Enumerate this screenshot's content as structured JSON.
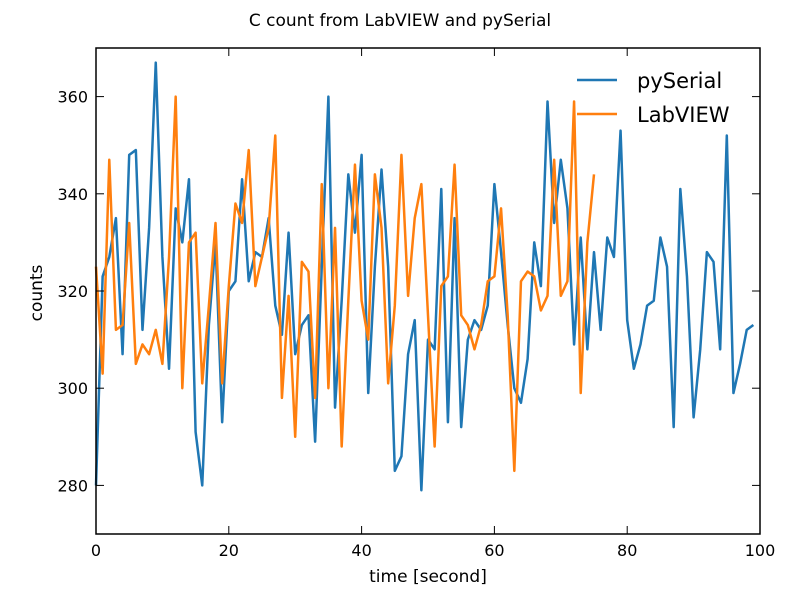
{
  "chart_data": {
    "type": "line",
    "title": "C count from LabVIEW and pySerial",
    "xlabel": "time [second]",
    "ylabel": "counts",
    "xlim": [
      0,
      100
    ],
    "ylim": [
      270,
      370
    ],
    "xticks": [
      0,
      20,
      40,
      60,
      80,
      100
    ],
    "yticks": [
      280,
      300,
      320,
      340,
      360
    ],
    "grid": false,
    "legend": "top-right",
    "series": [
      {
        "name": "pySerial",
        "color": "#1f77b4",
        "x": [
          0,
          1,
          2,
          3,
          4,
          5,
          6,
          7,
          8,
          9,
          10,
          11,
          12,
          13,
          14,
          15,
          16,
          17,
          18,
          19,
          20,
          21,
          22,
          23,
          24,
          25,
          26,
          27,
          28,
          29,
          30,
          31,
          32,
          33,
          34,
          35,
          36,
          37,
          38,
          39,
          40,
          41,
          42,
          43,
          44,
          45,
          46,
          47,
          48,
          49,
          50,
          51,
          52,
          53,
          54,
          55,
          56,
          57,
          58,
          59,
          60,
          61,
          62,
          63,
          64,
          65,
          66,
          67,
          68,
          69,
          70,
          71,
          72,
          73,
          74,
          75,
          76,
          77,
          78,
          79,
          80,
          81,
          82,
          83,
          84,
          85,
          86,
          87,
          88,
          89,
          90,
          91,
          92,
          93,
          94,
          95,
          96,
          97,
          98,
          99
        ],
        "values": [
          280,
          323,
          327,
          335,
          307,
          348,
          349,
          312,
          333,
          367,
          327,
          304,
          337,
          330,
          343,
          291,
          280,
          313,
          330,
          293,
          320,
          322,
          343,
          322,
          328,
          327,
          335,
          317,
          311,
          332,
          307,
          313,
          315,
          289,
          325,
          360,
          296,
          318,
          344,
          332,
          348,
          299,
          325,
          345,
          325,
          283,
          286,
          307,
          314,
          279,
          310,
          308,
          341,
          293,
          335,
          292,
          310,
          314,
          312,
          317,
          342,
          328,
          313,
          300,
          297,
          306,
          330,
          321,
          359,
          334,
          347,
          337,
          309,
          331,
          308,
          328,
          312,
          331,
          327,
          353,
          314,
          304,
          309,
          317,
          318,
          331,
          325,
          292,
          341,
          323,
          294,
          308,
          328,
          326,
          308,
          352,
          299,
          305,
          312,
          313
        ]
      },
      {
        "name": "LabVIEW",
        "color": "#ff7f0e",
        "x": [
          0,
          1,
          2,
          3,
          4,
          5,
          6,
          7,
          8,
          9,
          10,
          11,
          12,
          13,
          14,
          15,
          16,
          17,
          18,
          19,
          20,
          21,
          22,
          23,
          24,
          25,
          26,
          27,
          28,
          29,
          30,
          31,
          32,
          33,
          34,
          35,
          36,
          37,
          38,
          39,
          40,
          41,
          42,
          43,
          44,
          45,
          46,
          47,
          48,
          49,
          50,
          51,
          52,
          53,
          54,
          55,
          56,
          57,
          58,
          59,
          60,
          61,
          62,
          63,
          64,
          65,
          66,
          67,
          68,
          69,
          70,
          71,
          72,
          73,
          74,
          75
        ],
        "values": [
          325,
          303,
          347,
          312,
          313,
          334,
          305,
          309,
          307,
          312,
          305,
          327,
          360,
          300,
          330,
          332,
          301,
          317,
          334,
          301,
          321,
          338,
          334,
          349,
          321,
          327,
          333,
          352,
          298,
          319,
          290,
          326,
          324,
          298,
          342,
          300,
          333,
          288,
          318,
          346,
          318,
          310,
          344,
          333,
          301,
          317,
          348,
          319,
          335,
          342,
          315,
          288,
          321,
          323,
          346,
          315,
          313,
          308,
          313,
          322,
          323,
          337,
          315,
          283,
          322,
          324,
          323,
          316,
          319,
          347,
          319,
          322,
          359,
          299,
          330,
          344
        ]
      }
    ]
  }
}
